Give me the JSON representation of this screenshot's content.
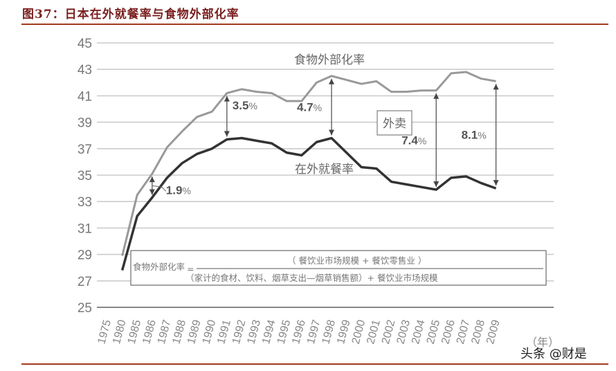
{
  "figure": {
    "title": "图37：日本在外就餐率与食物外部化率",
    "watermark": "头条 @财是"
  },
  "chart_data": {
    "type": "line",
    "title": "日本在外就餐率与食物外部化率",
    "xlabel": "（年）",
    "ylabel": "",
    "ylim": [
      25,
      45
    ],
    "yticks": [
      45,
      43,
      41,
      39,
      37,
      35,
      33,
      31,
      29,
      27,
      25
    ],
    "grid": true,
    "categories": [
      "1975",
      "1980",
      "1985",
      "1986",
      "1987",
      "1988",
      "1989",
      "1990",
      "1991",
      "1992",
      "1993",
      "1994",
      "1995",
      "1996",
      "1997",
      "1998",
      "1999",
      "2000",
      "2001",
      "2002",
      "2003",
      "2004",
      "2005",
      "2006",
      "2007",
      "2008",
      "2009"
    ],
    "x": [
      "1980",
      "1985",
      "1986",
      "1987",
      "1988",
      "1989",
      "1990",
      "1991",
      "1992",
      "1993",
      "1994",
      "1995",
      "1996",
      "1997",
      "1998",
      "1999",
      "2000",
      "2001",
      "2002",
      "2003",
      "2004",
      "2005",
      "2006",
      "2007",
      "2008",
      "2009"
    ],
    "series": [
      {
        "name": "食物外部化率",
        "color": "#999999",
        "values": [
          28.9,
          33.5,
          35.1,
          37.1,
          38.3,
          39.4,
          39.8,
          41.2,
          41.5,
          41.3,
          41.2,
          40.6,
          40.6,
          42.0,
          42.5,
          42.2,
          41.9,
          42.1,
          41.3,
          41.3,
          41.4,
          41.4,
          42.7,
          42.8,
          42.3,
          42.1
        ]
      },
      {
        "name": "在外就餐率",
        "color": "#333333",
        "values": [
          27.8,
          31.9,
          33.3,
          34.8,
          35.9,
          36.6,
          37.0,
          37.7,
          37.8,
          37.6,
          37.4,
          36.7,
          36.5,
          37.5,
          37.8,
          36.7,
          35.6,
          35.5,
          34.5,
          34.3,
          34.1,
          33.9,
          34.8,
          34.9,
          34.4,
          34.0
        ]
      }
    ],
    "annotations": [
      {
        "year": "1986",
        "label": "1.9",
        "unit": "%"
      },
      {
        "year": "1991",
        "label": "3.5",
        "unit": "%"
      },
      {
        "year": "1998",
        "label": "4.7",
        "unit": "%"
      },
      {
        "year": "2005",
        "label": "7.4",
        "unit": "%"
      },
      {
        "year": "2009",
        "label": "8.1",
        "unit": "%"
      }
    ],
    "gap_label": "外卖",
    "formula": {
      "lhs": "食物外部化率",
      "eq": "=",
      "numerator": "（ 餐饮业市场规模 + 餐饮零售业 ）",
      "denominator": "（家计的食材、饮料、烟草支出—烟草销售额）+ 餐饮业市场规模"
    }
  }
}
